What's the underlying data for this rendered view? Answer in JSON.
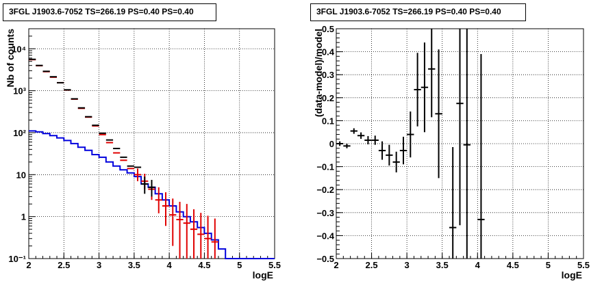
{
  "chart_data": [
    {
      "type": "line",
      "title": "3FGL J1903.6-7052 TS=266.19 PS=0.40 PS=0.40",
      "xlabel": "logE",
      "ylabel": "Nb of counts",
      "xlim": [
        2,
        5.5
      ],
      "ylim": [
        0.1,
        30000
      ],
      "yscale": "log",
      "grid": true,
      "x_ticks": [
        "2",
        "2.5",
        "3",
        "3.5",
        "4",
        "4.5",
        "5",
        "5.5"
      ],
      "y_ticks": [
        "10⁻¹",
        "1",
        "10",
        "10²",
        "10³",
        "10⁴"
      ],
      "y_tick_values": [
        0.1,
        1,
        10,
        100,
        1000,
        10000
      ],
      "bin_edges": [
        2.0,
        2.1,
        2.2,
        2.3,
        2.4,
        2.5,
        2.6,
        2.7,
        2.8,
        2.9,
        3.0,
        3.1,
        3.2,
        3.3,
        3.4,
        3.5,
        3.6,
        3.7,
        3.8,
        3.9,
        4.0,
        4.1,
        4.2,
        4.3,
        4.4,
        4.5,
        4.6,
        4.7,
        4.8,
        4.9,
        5.0,
        5.1,
        5.2,
        5.3,
        5.4,
        5.5
      ],
      "series": [
        {
          "kind": "points",
          "color": "#000000",
          "x": [
            2.05,
            2.15,
            2.25,
            2.35,
            2.45,
            2.55,
            2.65,
            2.75,
            2.85,
            2.95,
            3.05,
            3.15,
            3.25,
            3.35,
            3.45,
            3.55,
            3.65,
            3.75
          ],
          "y": [
            5600,
            4000,
            2900,
            2150,
            1550,
            1050,
            640,
            390,
            240,
            150,
            97,
            67,
            42,
            26,
            16,
            15,
            6,
            5
          ],
          "err_low": [
            0,
            0,
            0,
            0,
            0,
            0,
            0,
            0,
            0,
            0,
            0,
            0,
            0,
            0,
            0,
            0,
            2.5,
            2
          ],
          "err_high": [
            0,
            0,
            0,
            0,
            0,
            0,
            0,
            0,
            0,
            0,
            0,
            0,
            0,
            0,
            0,
            0,
            3,
            2.5
          ]
        },
        {
          "kind": "points",
          "color": "#e00000",
          "x": [
            2.05,
            2.15,
            2.25,
            2.35,
            2.45,
            2.55,
            2.65,
            2.75,
            2.85,
            2.95,
            3.05,
            3.15,
            3.25,
            3.35,
            3.45,
            3.55,
            3.65,
            3.75,
            3.85,
            3.95,
            4.05,
            4.15,
            4.25,
            4.35,
            4.45,
            4.55,
            4.65
          ],
          "y": [
            5500,
            3950,
            2850,
            2100,
            1550,
            1040,
            630,
            380,
            235,
            145,
            90,
            58,
            33,
            22,
            14,
            10,
            7,
            4.5,
            2.5,
            1.8,
            1.1,
            0.85,
            0.7,
            0.5,
            0.38,
            0.3,
            0.25
          ],
          "err_low": [
            0,
            0,
            0,
            0,
            0,
            0,
            0,
            0,
            0,
            0,
            0,
            0,
            0,
            0,
            0,
            3,
            2.5,
            2,
            1.3,
            1.2,
            0.9,
            0.75,
            0.65,
            0.47,
            0.36,
            0.28,
            0.24
          ],
          "err_high": [
            0,
            0,
            0,
            0,
            0,
            0,
            0,
            0,
            0,
            0,
            0,
            0,
            0,
            0,
            0,
            4,
            3.5,
            3,
            2.5,
            2,
            1.6,
            1.4,
            1.3,
            1.0,
            0.85,
            0.75,
            0.65
          ]
        },
        {
          "kind": "step",
          "color": "#0000dd",
          "values": [
            110,
            105,
            95,
            85,
            75,
            65,
            55,
            45,
            38,
            30,
            26,
            20,
            16,
            13,
            11,
            9,
            6,
            5,
            3.5,
            2.5,
            1.8,
            1.3,
            1.0,
            0.75,
            0.55,
            0.4,
            0.28,
            0.17,
            0.1,
            0.1,
            0.1,
            0.1,
            0.1,
            0.1,
            0.1
          ]
        }
      ]
    },
    {
      "type": "scatter",
      "title": "3FGL J1903.6-7052 TS=266.19 PS=0.40 PS=0.40",
      "xlabel": "logE",
      "ylabel": "(data-model)/model",
      "xlim": [
        2,
        5.5
      ],
      "ylim": [
        -0.5,
        0.5
      ],
      "grid": true,
      "x_ticks": [
        "2",
        "2.5",
        "3",
        "3.5",
        "4",
        "4.5",
        "5",
        "5.5"
      ],
      "y_ticks": [
        "−0.5",
        "−0.4",
        "−0.3",
        "−0.2",
        "−0.1",
        "0",
        "0.1",
        "0.2",
        "0.3",
        "0.4",
        "0.5"
      ],
      "y_tick_values": [
        -0.5,
        -0.4,
        -0.3,
        -0.2,
        -0.1,
        0,
        0.1,
        0.2,
        0.3,
        0.4,
        0.5
      ],
      "series": [
        {
          "color": "#000000",
          "x": [
            2.05,
            2.15,
            2.25,
            2.35,
            2.45,
            2.55,
            2.65,
            2.75,
            2.85,
            2.95,
            3.05,
            3.15,
            3.25,
            3.35,
            3.45,
            3.65,
            3.75,
            3.85,
            4.05
          ],
          "y": [
            0.0,
            -0.01,
            0.055,
            0.035,
            0.015,
            0.015,
            -0.03,
            -0.05,
            -0.08,
            -0.03,
            0.04,
            0.235,
            0.245,
            0.325,
            0.13,
            -0.365,
            0.175,
            -0.005,
            -0.33
          ],
          "err": [
            0.01,
            0.01,
            0.012,
            0.014,
            0.018,
            0.02,
            0.04,
            0.045,
            0.045,
            0.06,
            0.1,
            0.16,
            0.195,
            0.21,
            0.28,
            0.35,
            0.53,
            0.6,
            0.72
          ]
        }
      ]
    }
  ]
}
